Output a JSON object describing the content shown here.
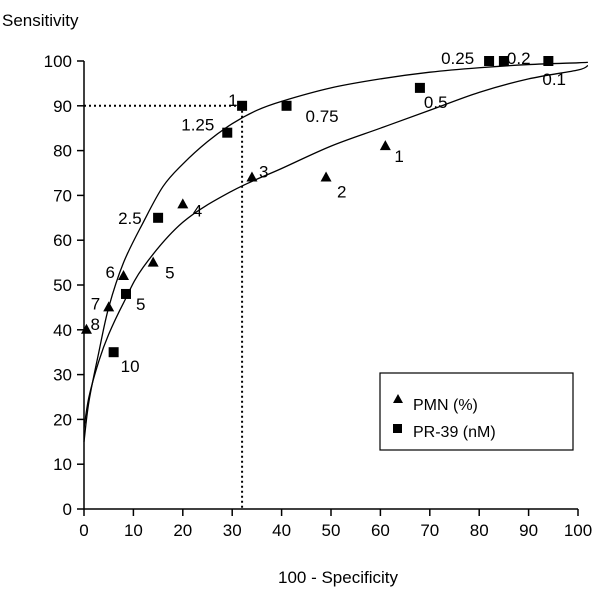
{
  "chart_data": {
    "type": "scatter",
    "ylabel": "Sensitivity",
    "xlabel": "100 - Specificity",
    "xlim": [
      0,
      100
    ],
    "ylim": [
      0,
      100
    ],
    "x_ticks": [
      0,
      10,
      20,
      30,
      40,
      50,
      60,
      70,
      80,
      90,
      100
    ],
    "y_ticks": [
      0,
      10,
      20,
      30,
      40,
      50,
      60,
      70,
      80,
      90,
      100
    ],
    "grid": false,
    "legend_position": "bottom-right",
    "series": [
      {
        "name": "PMN (%)",
        "marker": "triangle",
        "points": [
          {
            "x": 0.5,
            "y": 40,
            "label": "8"
          },
          {
            "x": 5,
            "y": 45,
            "label": "7"
          },
          {
            "x": 8,
            "y": 52,
            "label": "6"
          },
          {
            "x": 14,
            "y": 55,
            "label": "5"
          },
          {
            "x": 20,
            "y": 68,
            "label": "4"
          },
          {
            "x": 34,
            "y": 74,
            "label": "3"
          },
          {
            "x": 49,
            "y": 74,
            "label": "2"
          },
          {
            "x": 61,
            "y": 81,
            "label": "1"
          }
        ],
        "fit_curve": [
          [
            0,
            18
          ],
          [
            1,
            25
          ],
          [
            3,
            33
          ],
          [
            5,
            39
          ],
          [
            8,
            46
          ],
          [
            12,
            54
          ],
          [
            20,
            64
          ],
          [
            30,
            71
          ],
          [
            40,
            76
          ],
          [
            50,
            81
          ],
          [
            60,
            85
          ],
          [
            70,
            89
          ],
          [
            80,
            93
          ],
          [
            90,
            96
          ],
          [
            100,
            98
          ],
          [
            102,
            99
          ]
        ]
      },
      {
        "name": "PR-39 (nM)",
        "marker": "square",
        "points": [
          {
            "x": 6,
            "y": 35,
            "label": "10"
          },
          {
            "x": 8.5,
            "y": 48,
            "label": "5"
          },
          {
            "x": 15,
            "y": 65,
            "label": "2.5"
          },
          {
            "x": 29,
            "y": 84,
            "label": "1.25"
          },
          {
            "x": 32,
            "y": 90,
            "label": "1"
          },
          {
            "x": 41,
            "y": 90,
            "label": "0.75"
          },
          {
            "x": 68,
            "y": 94,
            "label": "0.5"
          },
          {
            "x": 82,
            "y": 100,
            "label": "0.25"
          },
          {
            "x": 85,
            "y": 100,
            "label": "0.2"
          },
          {
            "x": 94,
            "y": 100,
            "label": "0.1"
          }
        ],
        "fit_curve": [
          [
            0,
            15
          ],
          [
            1,
            24
          ],
          [
            3,
            35
          ],
          [
            5,
            45
          ],
          [
            8,
            55
          ],
          [
            12,
            64
          ],
          [
            16,
            72
          ],
          [
            20,
            77
          ],
          [
            25,
            82
          ],
          [
            30,
            86
          ],
          [
            35,
            89
          ],
          [
            40,
            91
          ],
          [
            50,
            94
          ],
          [
            60,
            96
          ],
          [
            70,
            97.5
          ],
          [
            80,
            98.5
          ],
          [
            90,
            99.2
          ],
          [
            100,
            99.6
          ],
          [
            102,
            99.7
          ]
        ]
      }
    ],
    "reference_lines": {
      "x": 32,
      "y": 90
    }
  },
  "colors": {
    "marks": "#000000",
    "background": "#ffffff"
  }
}
